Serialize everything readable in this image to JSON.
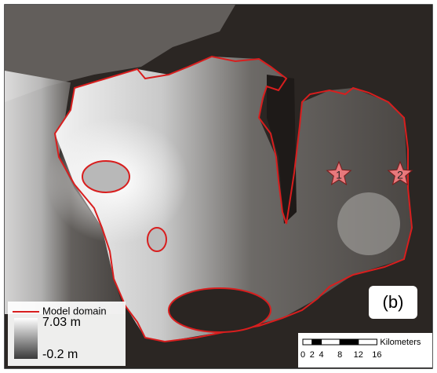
{
  "legend": {
    "line_label": "Model domain",
    "max_label": "7.03 m",
    "min_label": "-0.2 m"
  },
  "panel_label": "(b)",
  "markers": [
    {
      "label": "1"
    },
    {
      "label": "2"
    }
  ],
  "scale_bar": {
    "ticks": [
      "0",
      "2",
      "4",
      "8",
      "12",
      "16"
    ],
    "unit": "Kilometers"
  }
}
